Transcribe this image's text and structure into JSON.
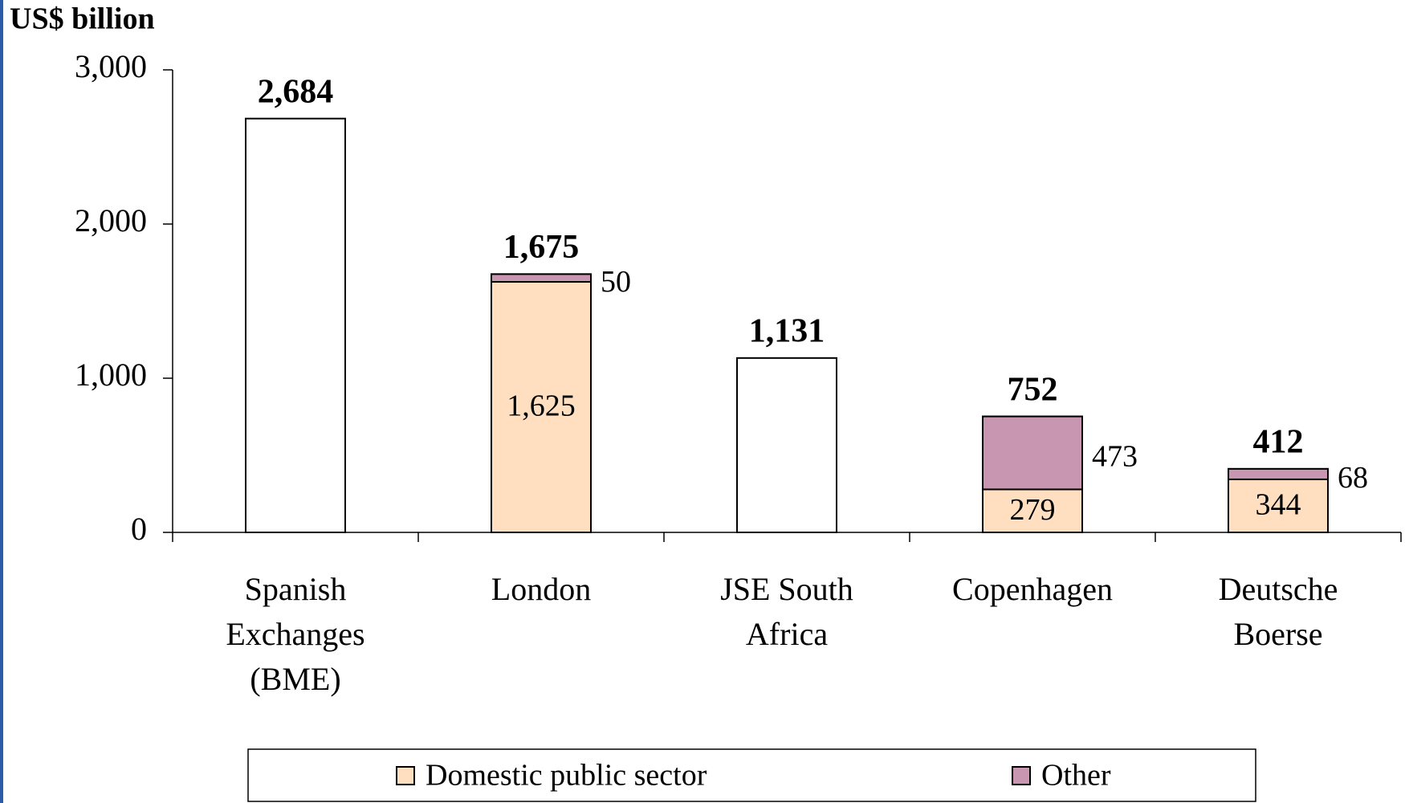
{
  "chart_data": {
    "type": "stacked-bar",
    "y_axis_label": "US$ billion",
    "categories": [
      "Spanish Exchanges (BME)",
      "London",
      "JSE South Africa",
      "Copenhagen",
      "Deutsche Boerse"
    ],
    "series": [
      {
        "name": "Domestic public sector",
        "color": "#ffdfbf",
        "values": [
          null,
          1625,
          null,
          279,
          344
        ],
        "value_labels": [
          null,
          "1,625",
          null,
          "279",
          "344"
        ]
      },
      {
        "name": "Other",
        "color": "#c996b1",
        "values": [
          null,
          50,
          null,
          473,
          68
        ],
        "value_labels": [
          null,
          "50",
          null,
          "473",
          "68"
        ]
      }
    ],
    "totals": {
      "values": [
        2684,
        1675,
        1131,
        752,
        412
      ],
      "value_labels": [
        "2,684",
        "1,675",
        "1,131",
        "752",
        "412"
      ]
    },
    "ylim": [
      0,
      3000
    ],
    "yticks": [
      0,
      {
        "value": 1000,
        "label": "1,000"
      },
      {
        "value": 2000,
        "label": "2,000"
      },
      {
        "value": 3000,
        "label": "3,000"
      }
    ]
  }
}
